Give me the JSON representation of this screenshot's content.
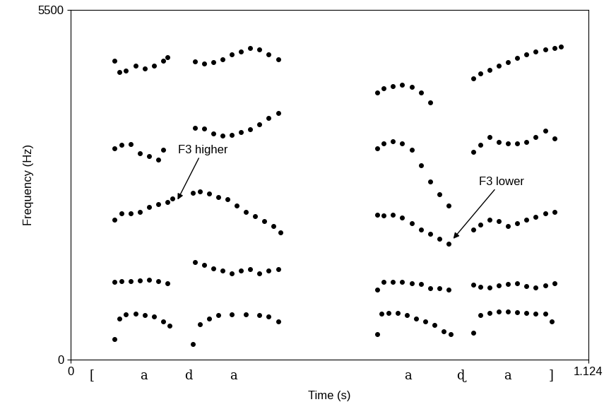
{
  "chart_data": {
    "type": "scatter",
    "xlabel": "Time (s)",
    "ylabel": "Frequency (Hz)",
    "xlim": [
      0,
      1.124
    ],
    "ylim": [
      0,
      5500
    ],
    "xticks": [
      0,
      1.124
    ],
    "yticks": [
      0,
      5500
    ],
    "color": "#000000",
    "marker": "o",
    "series": [
      {
        "x": [
          0.095,
          0.105,
          0.12,
          0.14,
          0.16,
          0.18,
          0.2,
          0.215,
          0.265,
          0.28,
          0.3,
          0.32,
          0.35,
          0.38,
          0.41,
          0.43,
          0.45,
          0.665,
          0.675,
          0.69,
          0.71,
          0.73,
          0.75,
          0.77,
          0.79,
          0.81,
          0.825,
          0.875,
          0.89,
          0.91,
          0.93,
          0.95,
          0.97,
          0.99,
          1.01,
          1.03,
          1.045
        ],
        "values": [
          330,
          650,
          710,
          720,
          700,
          680,
          600,
          540,
          250,
          560,
          650,
          700,
          710,
          710,
          700,
          680,
          600,
          400,
          720,
          740,
          740,
          700,
          650,
          600,
          550,
          450,
          400,
          420,
          700,
          740,
          760,
          760,
          750,
          740,
          730,
          720,
          600
        ]
      },
      {
        "x": [
          0.095,
          0.11,
          0.13,
          0.15,
          0.17,
          0.19,
          0.21,
          0.27,
          0.29,
          0.31,
          0.33,
          0.35,
          0.37,
          0.39,
          0.41,
          0.43,
          0.45,
          0.665,
          0.68,
          0.7,
          0.72,
          0.74,
          0.76,
          0.78,
          0.8,
          0.82,
          0.875,
          0.89,
          0.91,
          0.93,
          0.95,
          0.97,
          0.99,
          1.01,
          1.03,
          1.05
        ],
        "values": [
          1230,
          1240,
          1240,
          1250,
          1260,
          1240,
          1200,
          1540,
          1490,
          1440,
          1400,
          1360,
          1400,
          1430,
          1360,
          1400,
          1420,
          1100,
          1230,
          1230,
          1220,
          1200,
          1190,
          1130,
          1130,
          1100,
          1180,
          1150,
          1140,
          1170,
          1190,
          1200,
          1160,
          1140,
          1170,
          1200
        ]
      },
      {
        "x": [
          0.095,
          0.11,
          0.13,
          0.15,
          0.17,
          0.19,
          0.21,
          0.22,
          0.265,
          0.28,
          0.3,
          0.32,
          0.34,
          0.36,
          0.38,
          0.4,
          0.42,
          0.44,
          0.455,
          0.665,
          0.68,
          0.7,
          0.72,
          0.74,
          0.76,
          0.78,
          0.8,
          0.82,
          0.875,
          0.89,
          0.91,
          0.93,
          0.95,
          0.97,
          0.99,
          1.01,
          1.03,
          1.05
        ],
        "values": [
          2200,
          2300,
          2300,
          2320,
          2400,
          2450,
          2480,
          2540,
          2620,
          2650,
          2610,
          2560,
          2520,
          2420,
          2330,
          2260,
          2180,
          2100,
          2000,
          2280,
          2270,
          2280,
          2240,
          2150,
          2050,
          1980,
          1900,
          1830,
          2050,
          2130,
          2200,
          2180,
          2100,
          2150,
          2200,
          2250,
          2300,
          2330
        ]
      },
      {
        "x": [
          0.095,
          0.11,
          0.13,
          0.15,
          0.17,
          0.19,
          0.2,
          0.27,
          0.29,
          0.31,
          0.33,
          0.35,
          0.37,
          0.39,
          0.41,
          0.43,
          0.45,
          0.665,
          0.68,
          0.7,
          0.72,
          0.74,
          0.76,
          0.78,
          0.8,
          0.82,
          0.875,
          0.89,
          0.91,
          0.93,
          0.95,
          0.97,
          0.99,
          1.01,
          1.03,
          1.05
        ],
        "values": [
          3330,
          3380,
          3390,
          3250,
          3200,
          3150,
          3300,
          3650,
          3640,
          3560,
          3520,
          3540,
          3580,
          3620,
          3700,
          3800,
          3880,
          3320,
          3400,
          3440,
          3400,
          3300,
          3060,
          2800,
          2600,
          2420,
          3270,
          3380,
          3500,
          3420,
          3400,
          3400,
          3420,
          3500,
          3600,
          3480
        ]
      },
      {
        "x": [
          0.095,
          0.105,
          0.12,
          0.14,
          0.16,
          0.18,
          0.2,
          0.21,
          0.27,
          0.29,
          0.31,
          0.33,
          0.35,
          0.37,
          0.39,
          0.41,
          0.43,
          0.45,
          0.665,
          0.68,
          0.7,
          0.72,
          0.74,
          0.76,
          0.78,
          0.875,
          0.89,
          0.91,
          0.93,
          0.95,
          0.97,
          0.99,
          1.01,
          1.03,
          1.05,
          1.065
        ],
        "values": [
          4700,
          4520,
          4550,
          4620,
          4580,
          4620,
          4700,
          4760,
          4690,
          4660,
          4680,
          4720,
          4800,
          4850,
          4900,
          4880,
          4800,
          4720,
          4200,
          4270,
          4300,
          4320,
          4290,
          4200,
          4050,
          4430,
          4500,
          4560,
          4620,
          4680,
          4750,
          4800,
          4850,
          4880,
          4900,
          4920
        ]
      }
    ],
    "annotations": [
      {
        "text": "F3 higher",
        "x": 0.287,
        "y": 3300,
        "xy": [
          0.23,
          2490
        ]
      },
      {
        "text": "F3 lower",
        "x": 0.935,
        "y": 2800,
        "xy": [
          0.828,
          1880
        ]
      }
    ],
    "transcription": [
      {
        "label": "[",
        "x": 0.046
      },
      {
        "label": "a",
        "x": 0.158
      },
      {
        "label": "d",
        "x": 0.256
      },
      {
        "label": "a",
        "x": 0.353
      },
      {
        "label": "a",
        "x": 0.733
      },
      {
        "label": "ɖ",
        "x": 0.847
      },
      {
        "label": "a",
        "x": 0.948
      },
      {
        "label": "]",
        "x": 1.043
      }
    ]
  }
}
